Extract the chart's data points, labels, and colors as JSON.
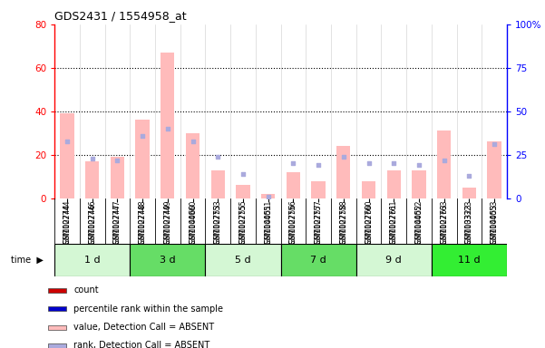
{
  "title": "GDS2431 / 1554958_at",
  "samples": [
    "GSM102744",
    "GSM102746",
    "GSM102747",
    "GSM102748",
    "GSM102749",
    "GSM104060",
    "GSM102753",
    "GSM102755",
    "GSM104051",
    "GSM102756",
    "GSM102757",
    "GSM102758",
    "GSM102760",
    "GSM102761",
    "GSM104052",
    "GSM102763",
    "GSM103323",
    "GSM104053"
  ],
  "groups": [
    {
      "label": "1 d",
      "indices": [
        0,
        1,
        2
      ],
      "color": "#d4f7d4"
    },
    {
      "label": "3 d",
      "indices": [
        3,
        4,
        5
      ],
      "color": "#66dd66"
    },
    {
      "label": "5 d",
      "indices": [
        6,
        7,
        8
      ],
      "color": "#d4f7d4"
    },
    {
      "label": "7 d",
      "indices": [
        9,
        10,
        11
      ],
      "color": "#66dd66"
    },
    {
      "label": "9 d",
      "indices": [
        12,
        13,
        14
      ],
      "color": "#d4f7d4"
    },
    {
      "label": "11 d",
      "indices": [
        15,
        16,
        17
      ],
      "color": "#33ee33"
    }
  ],
  "bar_values_absent": [
    39,
    17,
    19,
    36,
    67,
    30,
    13,
    6,
    2,
    12,
    8,
    24,
    8,
    13,
    13,
    31,
    5,
    26
  ],
  "rank_values_absent": [
    33,
    23,
    22,
    36,
    40,
    33,
    24,
    14,
    1,
    20,
    19,
    24,
    20,
    20,
    19,
    22,
    13,
    31
  ],
  "bar_color_absent": "#ffbbbb",
  "rank_color_absent": "#aaaadd",
  "ylim_left": [
    0,
    80
  ],
  "ylim_right": [
    0,
    100
  ],
  "yticks_left": [
    0,
    20,
    40,
    60,
    80
  ],
  "yticks_right": [
    0,
    25,
    50,
    75,
    100
  ],
  "plot_bg": "#ffffff",
  "legend_items": [
    {
      "label": "count",
      "color": "#cc0000"
    },
    {
      "label": "percentile rank within the sample",
      "color": "#0000cc"
    },
    {
      "label": "value, Detection Call = ABSENT",
      "color": "#ffbbbb"
    },
    {
      "label": "rank, Detection Call = ABSENT",
      "color": "#aaaadd"
    }
  ]
}
